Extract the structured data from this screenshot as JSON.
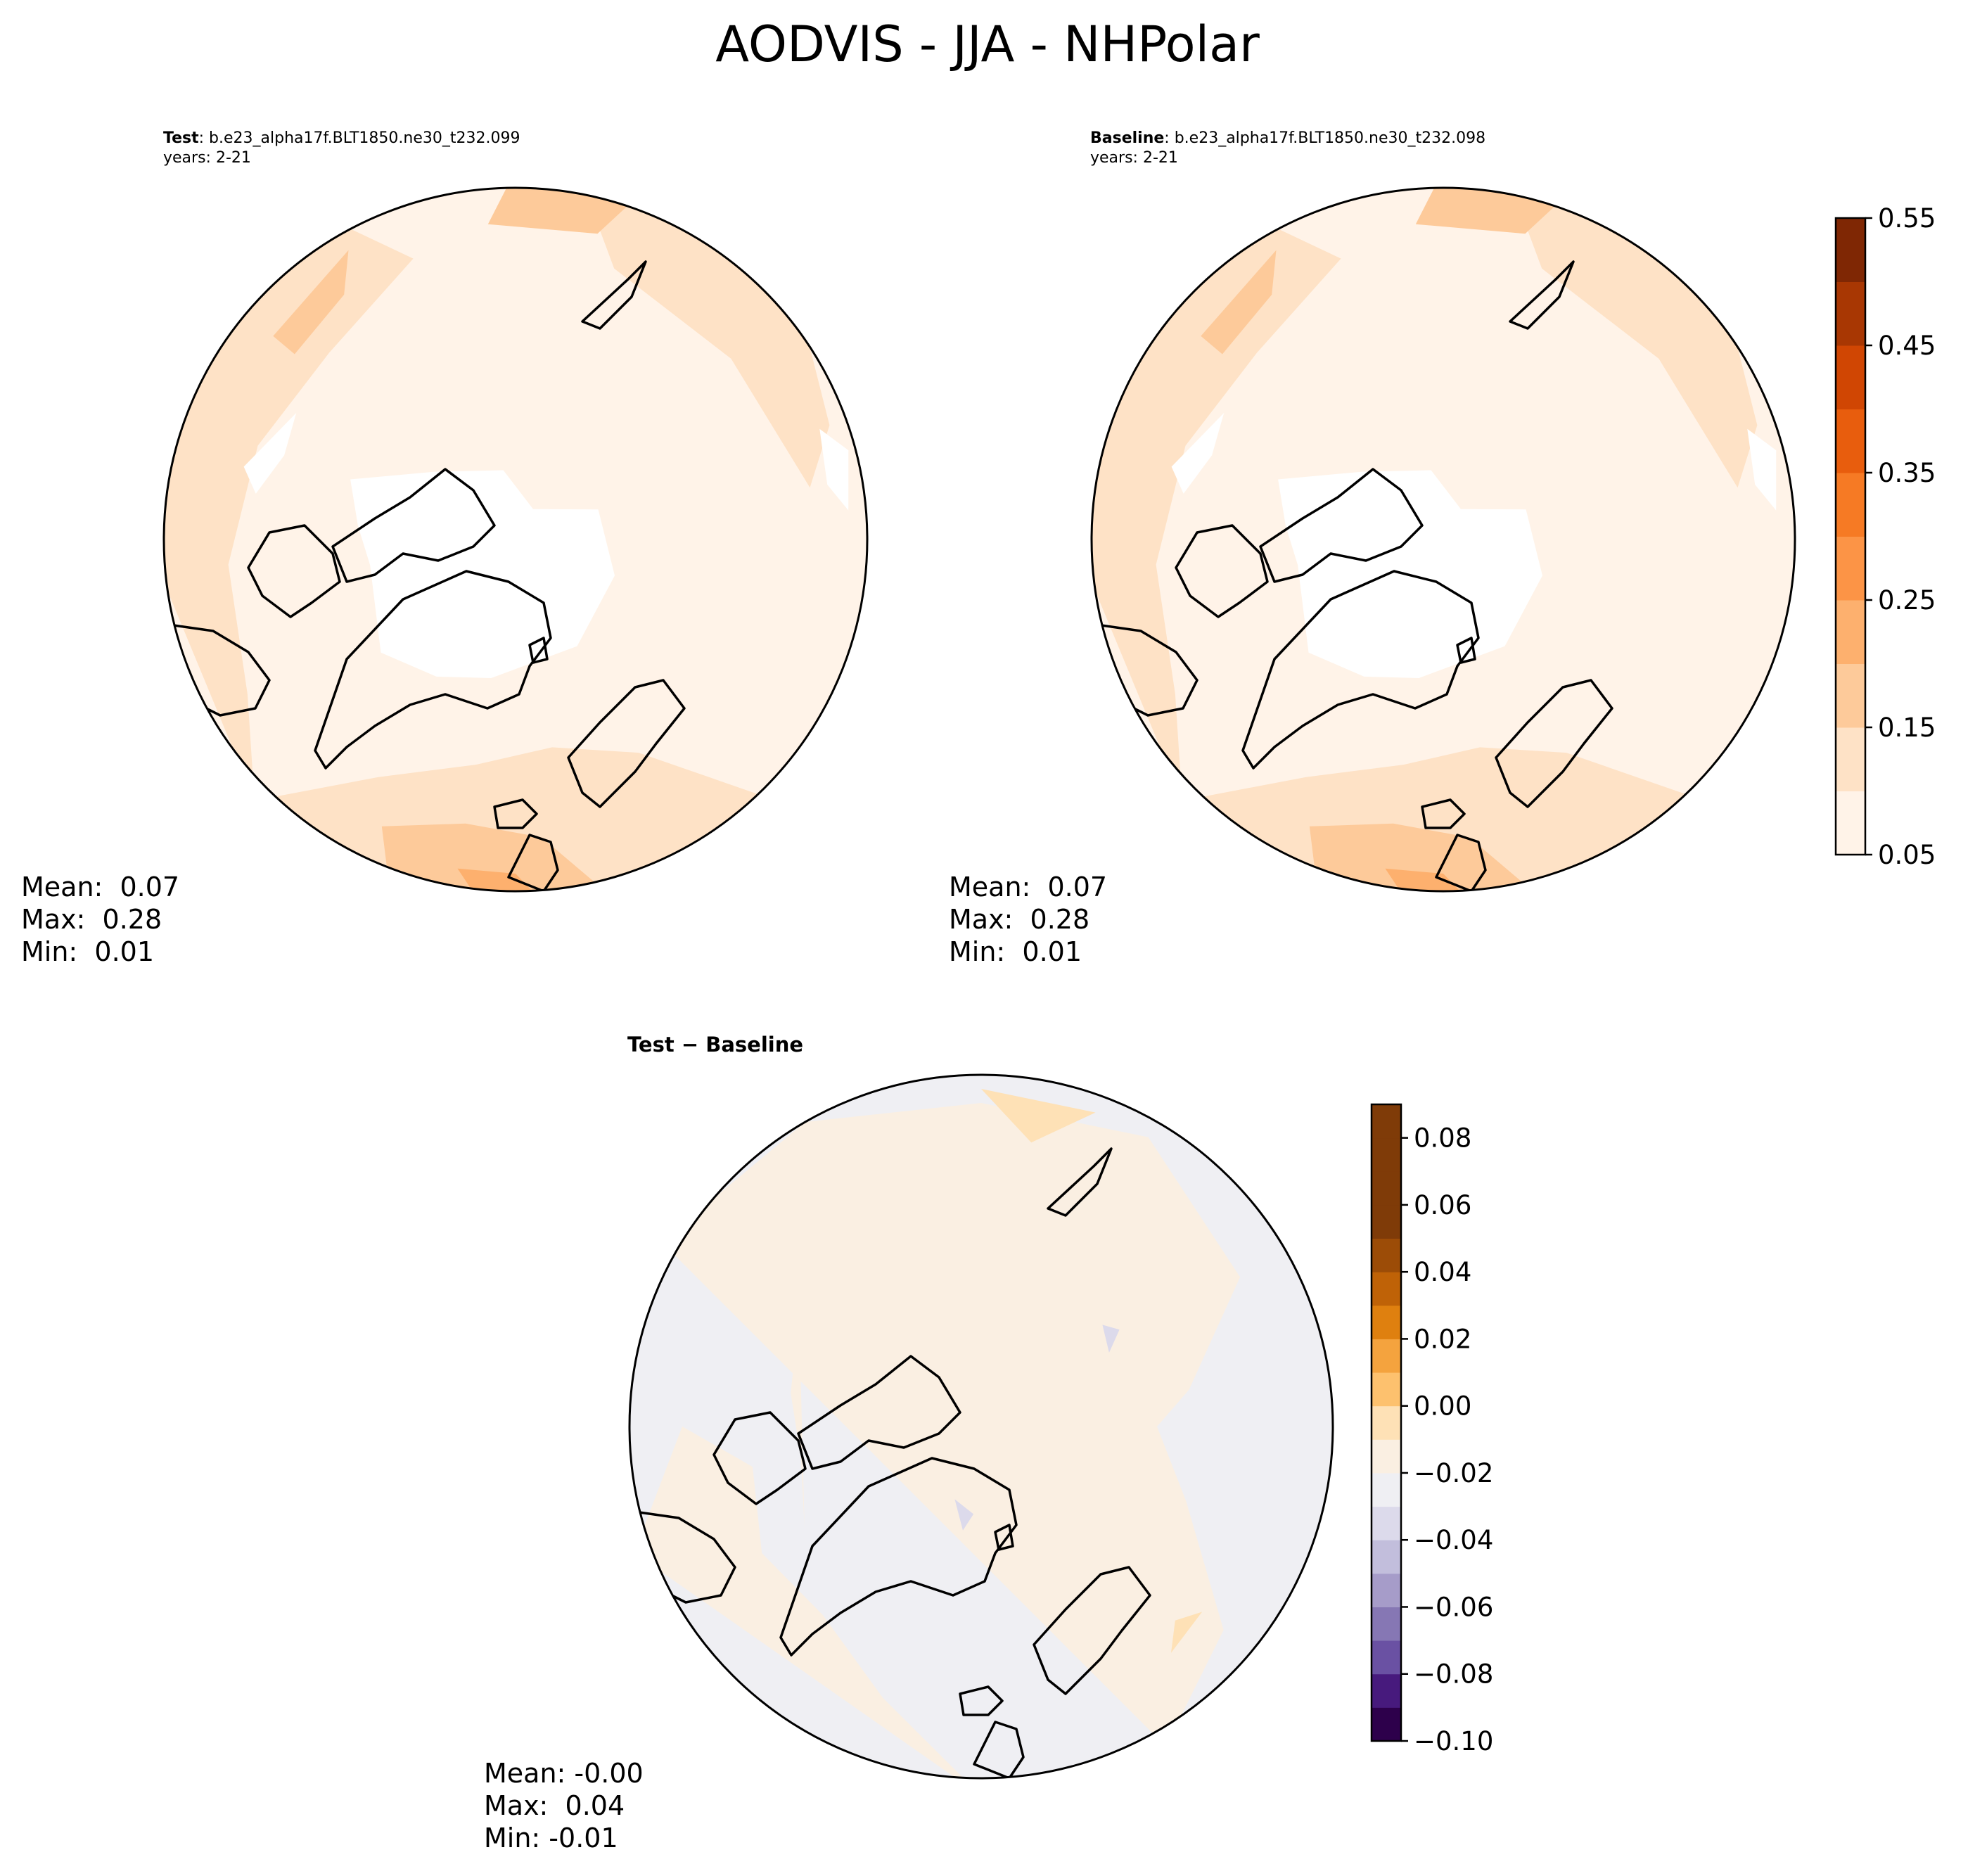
{
  "figure": {
    "title": "AODVIS - JJA - NHPolar"
  },
  "panels": {
    "test": {
      "label": "Test",
      "case": ": b.e23_alpha17f.BLT1850.ne30_t232.099",
      "years": "years: 2-21",
      "mean": "Mean:  0.07",
      "max": "Max:  0.28",
      "min": "Min:  0.01"
    },
    "baseline": {
      "label": "Baseline",
      "case": ": b.e23_alpha17f.BLT1850.ne30_t232.098",
      "years": "years: 2-21",
      "mean": "Mean:  0.07",
      "max": "Max:  0.28",
      "min": "Min:  0.01"
    },
    "diff": {
      "label_a": "Test",
      "label_sep": " − ",
      "label_b": "Baseline",
      "mean": "Mean: -0.00",
      "max": "Max:  0.04",
      "min": "Min: -0.01"
    }
  },
  "colors": {
    "oranges": [
      "#fff3e8",
      "#fee2c6",
      "#fdca9a",
      "#fdb06e",
      "#fc9446",
      "#f67a24",
      "#e85d0d",
      "#d04603",
      "#a83703",
      "#7f2704"
    ],
    "diverging": [
      "#2d004b",
      "#471a7d",
      "#6a51a3",
      "#8677b4",
      "#a69cc9",
      "#c2bedc",
      "#dcdaeb",
      "#efeff3",
      "#faefe2",
      "#fee1b6",
      "#fdc16e",
      "#f4a33e",
      "#df800f",
      "#bf6207",
      "#9c4c07",
      "#7f3b08"
    ],
    "land_outline": "#000000"
  },
  "chart_data": [
    {
      "type": "heatmap",
      "name": "test",
      "projection": "north polar stereographic",
      "colorbar": {
        "levels": [
          0.05,
          0.1,
          0.15,
          0.2,
          0.25,
          0.3,
          0.35,
          0.4,
          0.45,
          0.5,
          0.55
        ],
        "tick_labels": [
          "0.05",
          "0.15",
          "0.25",
          "0.35",
          "0.45",
          "0.55"
        ]
      },
      "stats": {
        "mean": 0.07,
        "max": 0.28,
        "min": 0.01
      }
    },
    {
      "type": "heatmap",
      "name": "baseline",
      "projection": "north polar stereographic",
      "colorbar": {
        "levels": [
          0.05,
          0.1,
          0.15,
          0.2,
          0.25,
          0.3,
          0.35,
          0.4,
          0.45,
          0.5,
          0.55
        ],
        "tick_labels": [
          "0.05",
          "0.15",
          "0.25",
          "0.35",
          "0.45",
          "0.55"
        ]
      },
      "stats": {
        "mean": 0.07,
        "max": 0.28,
        "min": 0.01
      }
    },
    {
      "type": "heatmap",
      "name": "test-minus-baseline",
      "projection": "north polar stereographic",
      "colorbar": {
        "levels": [
          -0.1,
          -0.09,
          -0.08,
          -0.07,
          -0.06,
          -0.05,
          -0.04,
          -0.03,
          -0.02,
          -0.01,
          0.0,
          0.01,
          0.02,
          0.03,
          0.04,
          0.05,
          0.06,
          0.07,
          0.08,
          0.09
        ],
        "tick_labels": [
          "0.08",
          "0.06",
          "0.04",
          "0.02",
          "0.00",
          "−0.02",
          "−0.04",
          "−0.06",
          "−0.08",
          "−0.10"
        ]
      },
      "stats": {
        "mean": -0.0,
        "max": 0.04,
        "min": -0.01
      }
    }
  ]
}
